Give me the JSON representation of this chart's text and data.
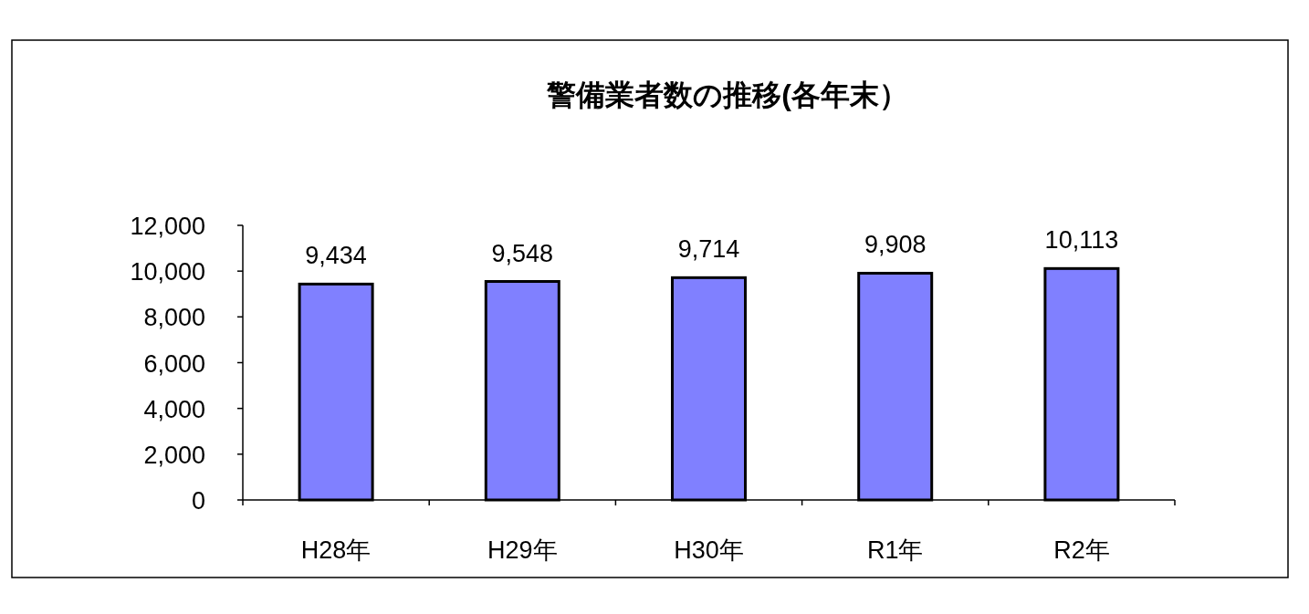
{
  "chart_data": {
    "type": "bar",
    "title": "警備業者数の推移(各年末）",
    "categories": [
      "H28年",
      "H29年",
      "H30年",
      "R1年",
      "R2年"
    ],
    "values": [
      9434,
      9548,
      9714,
      9908,
      10113
    ],
    "value_labels": [
      "9,434",
      "9,548",
      "9,714",
      "9,908",
      "10,113"
    ],
    "color": "#8080ff",
    "ylim": [
      0,
      12000
    ],
    "yticks": [
      {
        "value": 0,
        "label": "0"
      },
      {
        "value": 2000,
        "label": "2,000"
      },
      {
        "value": 4000,
        "label": "4,000"
      },
      {
        "value": 6000,
        "label": "6,000"
      },
      {
        "value": 8000,
        "label": "8,000"
      },
      {
        "value": 10000,
        "label": "10,000"
      },
      {
        "value": 12000,
        "label": "12,000"
      }
    ],
    "grid": false
  }
}
